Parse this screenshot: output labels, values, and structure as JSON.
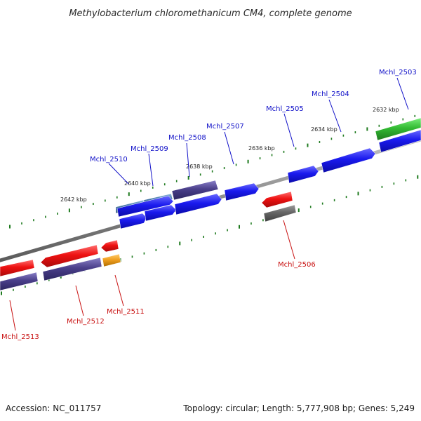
{
  "title": "Methylobacterium chloromethanicum CM4, complete genome",
  "footer": {
    "accession": "Accession: NC_011757",
    "summary": "Topology: circular; Length: 5,777,908 bp; Genes: 5,249"
  },
  "scale_labels": [
    "2642 kbp",
    "2640 kbp",
    "2638 kbp",
    "2636 kbp",
    "2634 kbp",
    "2632 kbp"
  ],
  "genes_forward": [
    "Mchl_2510",
    "Mchl_2509",
    "Mchl_2508",
    "Mchl_2507",
    "Mchl_2505",
    "Mchl_2504",
    "Mchl_2503"
  ],
  "genes_reverse": [
    "Mchl_2506",
    "Mchl_2511",
    "Mchl_2512",
    "Mchl_2513"
  ],
  "colors": {
    "forward_label": "#1010c8",
    "reverse_label": "#c81010",
    "tick": "#1e7a1e",
    "backbone": "#8a8a8a",
    "blue_gene": "#1a1aee",
    "red_gene": "#ee1111",
    "purple_gene": "#4a3f8a",
    "gray_gene": "#666666",
    "green_gene": "#33bb33",
    "orange_gene": "#f0a020",
    "steel_gene": "#4a7aaa"
  }
}
